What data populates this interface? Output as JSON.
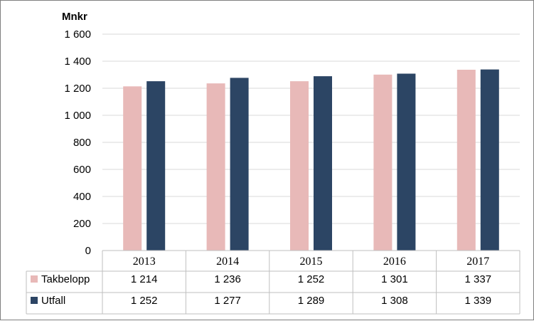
{
  "chart_data": {
    "type": "bar",
    "ylabel": "Mnkr",
    "ylim": [
      0,
      1600
    ],
    "yticks": [
      0,
      200,
      400,
      600,
      800,
      1000,
      1200,
      1400,
      1600
    ],
    "ytick_labels": [
      "0",
      "200",
      "400",
      "600",
      "800",
      "1 000",
      "1 200",
      "1 400",
      "1 600"
    ],
    "grid": true,
    "categories": [
      "2013",
      "2014",
      "2015",
      "2016",
      "2017"
    ],
    "series": [
      {
        "name": "Takbelopp",
        "color": "#e8b9b8",
        "values": [
          1214,
          1236,
          1252,
          1301,
          1337
        ],
        "labels": [
          "1 214",
          "1 236",
          "1 252",
          "1 301",
          "1 337"
        ]
      },
      {
        "name": "Utfall",
        "color": "#2c4564",
        "values": [
          1252,
          1277,
          1289,
          1308,
          1339
        ],
        "labels": [
          "1 252",
          "1 277",
          "1 289",
          "1 308",
          "1 339"
        ]
      }
    ],
    "data_table": true
  }
}
